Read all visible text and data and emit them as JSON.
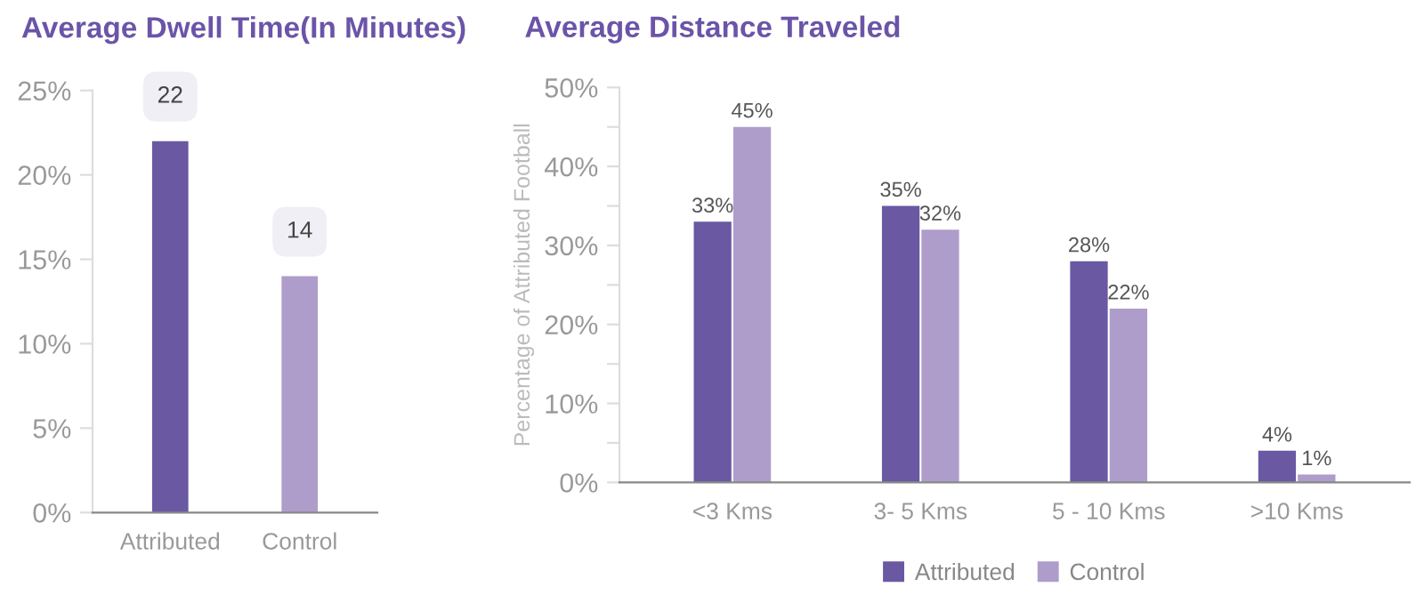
{
  "chart_data": [
    {
      "type": "bar",
      "title": "Average Dwell Time(In Minutes)",
      "categories": [
        "Attributed",
        "Control"
      ],
      "values": [
        22,
        14
      ],
      "colors": [
        "#6a58a3",
        "#ae9dcb"
      ],
      "data_labels": true,
      "ylim": [
        0,
        25
      ],
      "yticks": [
        {
          "value": 0,
          "label": "0%"
        },
        {
          "value": 5,
          "label": "5%"
        },
        {
          "value": 10,
          "label": "10%"
        },
        {
          "value": 15,
          "label": "15%"
        },
        {
          "value": 20,
          "label": "20%"
        },
        {
          "value": 25,
          "label": "25%"
        }
      ],
      "grid": false,
      "legend": false
    },
    {
      "type": "bar",
      "title": "Average Distance Traveled",
      "ylabel": "Percentage of Attributed Football",
      "categories": [
        "<3 Kms",
        "3- 5 Kms",
        "5 - 10 Kms",
        ">10 Kms"
      ],
      "series": [
        {
          "name": "Attributed",
          "color": "#6a58a3",
          "values": [
            33,
            35,
            28,
            4
          ],
          "value_labels": [
            "33%",
            "35%",
            "28%",
            "4%"
          ]
        },
        {
          "name": "Control",
          "color": "#ae9dcb",
          "values": [
            45,
            32,
            22,
            1
          ],
          "value_labels": [
            "45%",
            "32%",
            "22%",
            "1%"
          ]
        }
      ],
      "ylim": [
        0,
        50
      ],
      "yticks": [
        {
          "value": 0,
          "label": "0%"
        },
        {
          "value": 5,
          "label": null
        },
        {
          "value": 10,
          "label": "10%"
        },
        {
          "value": 15,
          "label": null
        },
        {
          "value": 20,
          "label": "20%"
        },
        {
          "value": 25,
          "label": null
        },
        {
          "value": 30,
          "label": "30%"
        },
        {
          "value": 35,
          "label": null
        },
        {
          "value": 40,
          "label": "40%"
        },
        {
          "value": 45,
          "label": null
        },
        {
          "value": 50,
          "label": "50%"
        }
      ],
      "grid": false,
      "legend": "bottom"
    }
  ]
}
